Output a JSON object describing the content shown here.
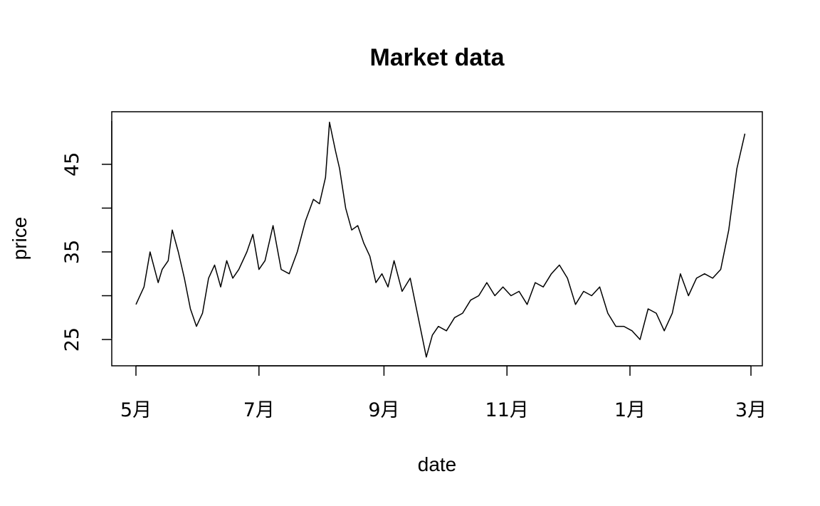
{
  "chart_data": {
    "type": "line",
    "title": "Market data",
    "xlabel": "date",
    "ylabel": "price",
    "x_ticks": [
      "5月",
      "7月",
      "9月",
      "11月",
      "1月",
      "3月"
    ],
    "y_ticks": [
      25,
      30,
      35,
      40,
      45
    ],
    "y_tick_labels": [
      "25",
      "",
      "35",
      "",
      "45"
    ],
    "ylim": [
      22,
      51
    ],
    "grid": false,
    "line_color": "#000000",
    "series": [
      {
        "x": [
          "2023-05-01",
          "2023-05-05",
          "2023-05-08",
          "2023-05-12",
          "2023-05-14",
          "2023-05-17",
          "2023-05-19",
          "2023-05-22",
          "2023-05-25",
          "2023-05-28",
          "2023-05-31",
          "2023-06-03",
          "2023-06-06",
          "2023-06-09",
          "2023-06-12",
          "2023-06-15",
          "2023-06-18",
          "2023-06-21",
          "2023-06-25",
          "2023-06-28",
          "2023-07-01",
          "2023-07-04",
          "2023-07-08",
          "2023-07-12",
          "2023-07-16",
          "2023-07-20",
          "2023-07-24",
          "2023-07-28",
          "2023-07-31",
          "2023-08-03",
          "2023-08-05",
          "2023-08-08",
          "2023-08-10",
          "2023-08-13",
          "2023-08-16",
          "2023-08-19",
          "2023-08-22",
          "2023-08-25",
          "2023-08-28",
          "2023-08-31",
          "2023-09-03",
          "2023-09-06",
          "2023-09-10",
          "2023-09-14",
          "2023-09-18",
          "2023-09-22",
          "2023-09-25",
          "2023-09-28",
          "2023-10-02",
          "2023-10-06",
          "2023-10-10",
          "2023-10-14",
          "2023-10-18",
          "2023-10-22",
          "2023-10-26",
          "2023-10-30",
          "2023-11-03",
          "2023-11-07",
          "2023-11-11",
          "2023-11-15",
          "2023-11-19",
          "2023-11-23",
          "2023-11-27",
          "2023-12-01",
          "2023-12-05",
          "2023-12-09",
          "2023-12-13",
          "2023-12-17",
          "2023-12-21",
          "2023-12-25",
          "2023-12-29",
          "2024-01-02",
          "2024-01-06",
          "2024-01-10",
          "2024-01-14",
          "2024-01-18",
          "2024-01-22",
          "2024-01-26",
          "2024-01-30",
          "2024-02-03",
          "2024-02-07",
          "2024-02-11",
          "2024-02-15",
          "2024-02-19",
          "2024-02-23",
          "2024-02-27"
        ],
        "values": [
          29,
          31,
          35,
          31.5,
          33,
          34,
          37.5,
          35,
          32,
          28.5,
          26.5,
          28,
          32,
          33.5,
          31,
          34,
          32,
          33,
          35,
          37,
          33,
          34,
          38,
          33,
          32.5,
          35,
          38.5,
          41,
          40.5,
          43.5,
          49.8,
          46.5,
          44.5,
          40,
          37.5,
          38,
          36,
          34.5,
          31.5,
          32.5,
          31,
          34,
          30.5,
          32,
          27.5,
          23,
          25.5,
          26.5,
          26,
          27.5,
          28,
          29.5,
          30,
          31.5,
          30,
          31,
          30,
          30.5,
          29,
          31.5,
          31,
          32.5,
          33.5,
          32,
          29,
          30.5,
          30,
          31,
          28,
          26.5,
          26.5,
          26,
          25,
          28.5,
          28,
          26,
          28,
          32.5,
          30,
          32,
          32.5,
          32,
          33,
          37.5,
          44.5,
          48.5
        ]
      }
    ]
  }
}
